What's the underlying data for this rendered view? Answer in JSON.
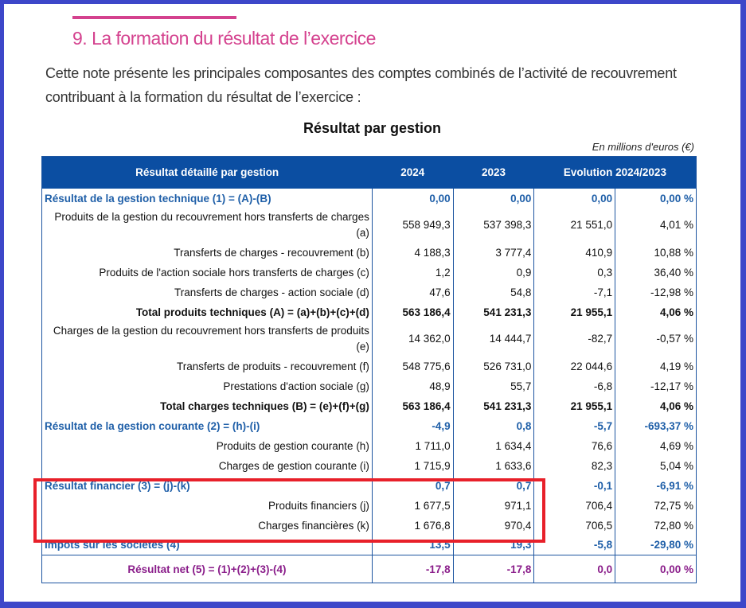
{
  "heading": "9.  La formation du résultat de l’exercice",
  "intro": "Cette note présente les principales composantes des comptes combinés de l’activité de recouvrement contribuant à la formation du résultat de l’exercice :",
  "table_title": "Résultat par gestion",
  "unit": "En millions d'euros (€)",
  "columns": [
    "Résultat détaillé par gestion",
    "2024",
    "2023",
    "Evolution 2024/2023"
  ],
  "colors": {
    "accent": "#d4418e",
    "header": "#0b4ea2",
    "section": "#1f5fa8",
    "net": "#8a1d8a",
    "highlight": "#e8202a"
  },
  "rows": [
    {
      "type": "section",
      "label": "Résultat de la gestion technique (1) = (A)-(B)",
      "v": [
        "0,00",
        "0,00",
        "0,00",
        "0,00 %"
      ]
    },
    {
      "type": "item two",
      "label": "Produits de la gestion du recouvrement hors transferts de charges (a)",
      "v": [
        "558 949,3",
        "537 398,3",
        "21 551,0",
        "4,01 %"
      ]
    },
    {
      "type": "item",
      "label": "Transferts de charges - recouvrement (b)",
      "v": [
        "4 188,3",
        "3 777,4",
        "410,9",
        "10,88 %"
      ]
    },
    {
      "type": "item",
      "label": "Produits de l'action sociale hors transferts de charges (c)",
      "v": [
        "1,2",
        "0,9",
        "0,3",
        "36,40 %"
      ]
    },
    {
      "type": "item",
      "label": "Transferts de charges - action sociale (d)",
      "v": [
        "47,6",
        "54,8",
        "-7,1",
        "-12,98 %"
      ]
    },
    {
      "type": "total",
      "label": "Total produits techniques (A) = (a)+(b)+(c)+(d)",
      "v": [
        "563 186,4",
        "541 231,3",
        "21 955,1",
        "4,06 %"
      ]
    },
    {
      "type": "item two",
      "label": "Charges de la gestion du recouvrement hors transferts de produits (e)",
      "v": [
        "14 362,0",
        "14 444,7",
        "-82,7",
        "-0,57 %"
      ]
    },
    {
      "type": "item",
      "label": "Transferts de produits - recouvrement (f)",
      "v": [
        "548 775,6",
        "526 731,0",
        "22 044,6",
        "4,19 %"
      ]
    },
    {
      "type": "item",
      "label": "Prestations d'action sociale (g)",
      "v": [
        "48,9",
        "55,7",
        "-6,8",
        "-12,17 %"
      ]
    },
    {
      "type": "total",
      "label": "Total charges techniques (B) = (e)+(f)+(g)",
      "v": [
        "563 186,4",
        "541 231,3",
        "21 955,1",
        "4,06 %"
      ]
    },
    {
      "type": "section",
      "label": "Résultat de la gestion courante (2) = (h)-(i)",
      "v": [
        "-4,9",
        "0,8",
        "-5,7",
        "-693,37 %"
      ]
    },
    {
      "type": "item",
      "label": "Produits de gestion courante (h)",
      "v": [
        "1 711,0",
        "1 634,4",
        "76,6",
        "4,69 %"
      ]
    },
    {
      "type": "item",
      "label": "Charges de gestion courante (i)",
      "v": [
        "1 715,9",
        "1 633,6",
        "82,3",
        "5,04 %"
      ]
    },
    {
      "type": "section",
      "label": "Résultat financier (3) = (j)-(k)",
      "v": [
        "0,7",
        "0,7",
        "-0,1",
        "-6,91 %"
      ]
    },
    {
      "type": "item",
      "label": "Produits financiers (j)",
      "v": [
        "1 677,5",
        "971,1",
        "706,4",
        "72,75 %"
      ]
    },
    {
      "type": "item",
      "label": "Charges financières (k)",
      "v": [
        "1 676,8",
        "970,4",
        "706,5",
        "72,80 %"
      ]
    },
    {
      "type": "section",
      "label": "Impôts sur les sociétés (4)",
      "v": [
        "13,5",
        "19,3",
        "-5,8",
        "-29,80 %"
      ]
    },
    {
      "type": "net",
      "label": "Résultat net (5) = (1)+(2)+(3)-(4)",
      "v": [
        "-17,8",
        "-17,8",
        "0,0",
        "0,00 %"
      ]
    }
  ]
}
